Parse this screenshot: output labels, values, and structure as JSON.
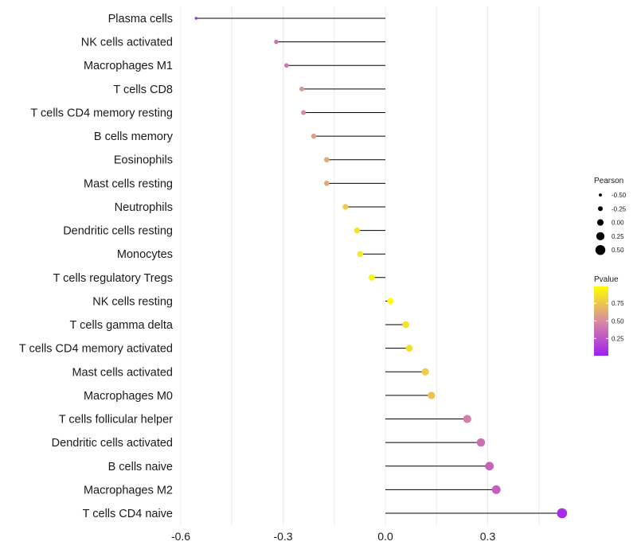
{
  "chart_data": {
    "type": "lollipop",
    "title": "",
    "xlabel": "",
    "ylabel": "",
    "xlim": [
      -0.6,
      0.55
    ],
    "x_ticks": [
      -0.6,
      -0.3,
      0.0,
      0.3
    ],
    "x_tick_labels": [
      "-0.6",
      "-0.3",
      "0.0",
      "0.3"
    ],
    "grid": true,
    "categories": [
      "Plasma cells",
      "NK cells activated",
      "Macrophages M1",
      "T cells CD8",
      "T cells CD4 memory resting",
      "B cells memory",
      "Eosinophils",
      "Mast cells resting",
      "Neutrophils",
      "Dendritic cells resting",
      "Monocytes",
      "T cells regulatory  Tregs ",
      "NK cells resting",
      "T cells gamma delta",
      "T cells CD4 memory activated",
      "Mast cells activated",
      "Macrophages M0",
      "T cells follicular helper",
      "Dendritic cells activated",
      "B cells naive",
      "Macrophages M2",
      "T cells CD4 naive"
    ],
    "pearson": [
      -0.555,
      -0.32,
      -0.29,
      -0.245,
      -0.24,
      -0.21,
      -0.172,
      -0.172,
      -0.117,
      -0.083,
      -0.074,
      -0.04,
      0.015,
      0.06,
      0.07,
      0.117,
      0.135,
      0.24,
      0.28,
      0.305,
      0.325,
      0.518
    ],
    "pvalue": [
      0.02,
      0.38,
      0.42,
      0.55,
      0.5,
      0.58,
      0.63,
      0.63,
      0.78,
      0.87,
      0.9,
      0.95,
      0.99,
      0.88,
      0.86,
      0.78,
      0.74,
      0.45,
      0.38,
      0.32,
      0.3,
      0.06
    ],
    "legend": {
      "size_title": "Pearson",
      "size_values": [
        "-0.50",
        "-0.25",
        "0.00",
        "0.25",
        "0.50"
      ],
      "color_title": "Pvalue",
      "color_ticks": [
        "0.75",
        "0.50",
        "0.25"
      ],
      "color_low": "#a020f0",
      "color_mid": "#d98aa0",
      "color_high": "#ffff00",
      "placement": "right"
    }
  }
}
